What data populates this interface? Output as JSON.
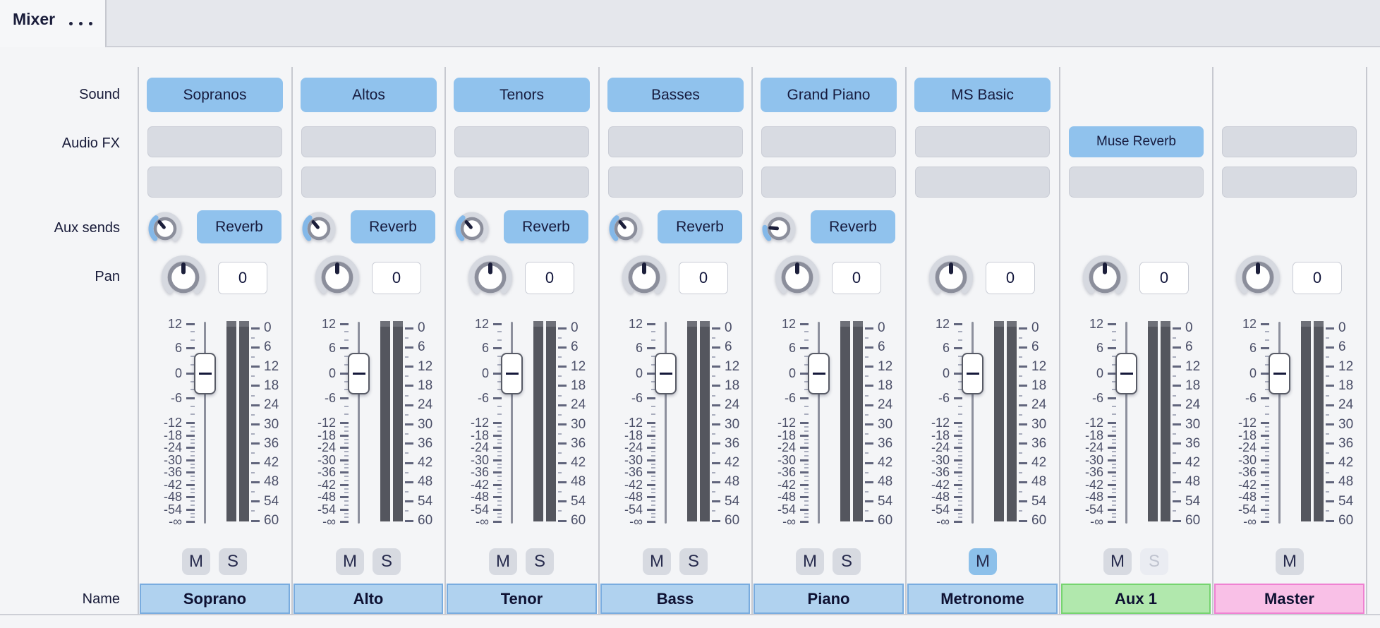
{
  "header": {
    "title": "Mixer",
    "menu_icon": "ellipsis-icon"
  },
  "row_labels": {
    "sound": "Sound",
    "audio_fx": "Audio FX",
    "aux_sends": "Aux sends",
    "pan": "Pan",
    "name": "Name"
  },
  "buttons": {
    "mute_label": "M",
    "solo_label": "S"
  },
  "fader_scale_labels": [
    "12",
    "6",
    "0",
    "-6",
    "-12",
    "-18",
    "-24",
    "-30",
    "-36",
    "-42",
    "-48",
    "-54",
    "-∞"
  ],
  "meter_scale_labels": [
    "0",
    "6",
    "12",
    "18",
    "24",
    "30",
    "36",
    "42",
    "48",
    "54",
    "60"
  ],
  "colors": {
    "accent_blue": "#90c2ed",
    "mute_active_blue": "#8cc0ea",
    "knob_arc_blue": "#84b8e8",
    "meter_bar": "#54565e",
    "name_blue_bg": "#b0d2ef",
    "name_blue_border": "#79acdf",
    "name_green_bg": "#b1e8ad",
    "name_green_border": "#76d470",
    "name_pink_bg": "#f9c0e7",
    "name_pink_border": "#ef82d2"
  },
  "channels": [
    {
      "name": "Soprano",
      "name_color": "blue",
      "sound": "Sopranos",
      "fx_slots": [
        "",
        ""
      ],
      "aux_send": {
        "label": "Reverb",
        "knob_angle": -40
      },
      "pan_value": "0",
      "fader_db": 0,
      "mute": {
        "present": true,
        "active": false,
        "enabled": true
      },
      "solo": {
        "present": true,
        "active": false,
        "enabled": true
      }
    },
    {
      "name": "Alto",
      "name_color": "blue",
      "sound": "Altos",
      "fx_slots": [
        "",
        ""
      ],
      "aux_send": {
        "label": "Reverb",
        "knob_angle": -40
      },
      "pan_value": "0",
      "fader_db": 0,
      "mute": {
        "present": true,
        "active": false,
        "enabled": true
      },
      "solo": {
        "present": true,
        "active": false,
        "enabled": true
      }
    },
    {
      "name": "Tenor",
      "name_color": "blue",
      "sound": "Tenors",
      "fx_slots": [
        "",
        ""
      ],
      "aux_send": {
        "label": "Reverb",
        "knob_angle": -40
      },
      "pan_value": "0",
      "fader_db": 0,
      "mute": {
        "present": true,
        "active": false,
        "enabled": true
      },
      "solo": {
        "present": true,
        "active": false,
        "enabled": true
      }
    },
    {
      "name": "Bass",
      "name_color": "blue",
      "sound": "Basses",
      "fx_slots": [
        "",
        ""
      ],
      "aux_send": {
        "label": "Reverb",
        "knob_angle": -40
      },
      "pan_value": "0",
      "fader_db": 0,
      "mute": {
        "present": true,
        "active": false,
        "enabled": true
      },
      "solo": {
        "present": true,
        "active": false,
        "enabled": true
      }
    },
    {
      "name": "Piano",
      "name_color": "blue",
      "sound": "Grand Piano",
      "fx_slots": [
        "",
        ""
      ],
      "aux_send": {
        "label": "Reverb",
        "knob_angle": -85
      },
      "pan_value": "0",
      "fader_db": 0,
      "mute": {
        "present": true,
        "active": false,
        "enabled": true
      },
      "solo": {
        "present": true,
        "active": false,
        "enabled": true
      }
    },
    {
      "name": "Metronome",
      "name_color": "blue",
      "sound": "MS Basic",
      "fx_slots": [
        "",
        ""
      ],
      "aux_send": null,
      "pan_value": "0",
      "fader_db": 0,
      "mute": {
        "present": true,
        "active": true,
        "enabled": true
      },
      "solo": {
        "present": false,
        "active": false,
        "enabled": true
      }
    },
    {
      "name": "Aux 1",
      "name_color": "green",
      "sound": null,
      "fx_slots": [
        "Muse Reverb",
        ""
      ],
      "aux_send": null,
      "pan_value": "0",
      "fader_db": 0,
      "mute": {
        "present": true,
        "active": false,
        "enabled": true
      },
      "solo": {
        "present": true,
        "active": false,
        "enabled": false
      }
    },
    {
      "name": "Master",
      "name_color": "pink",
      "sound": null,
      "fx_slots": [
        "",
        ""
      ],
      "aux_send": null,
      "pan_value": "0",
      "fader_db": 0,
      "mute": {
        "present": true,
        "active": false,
        "enabled": true
      },
      "solo": {
        "present": false,
        "active": false,
        "enabled": true
      }
    }
  ]
}
